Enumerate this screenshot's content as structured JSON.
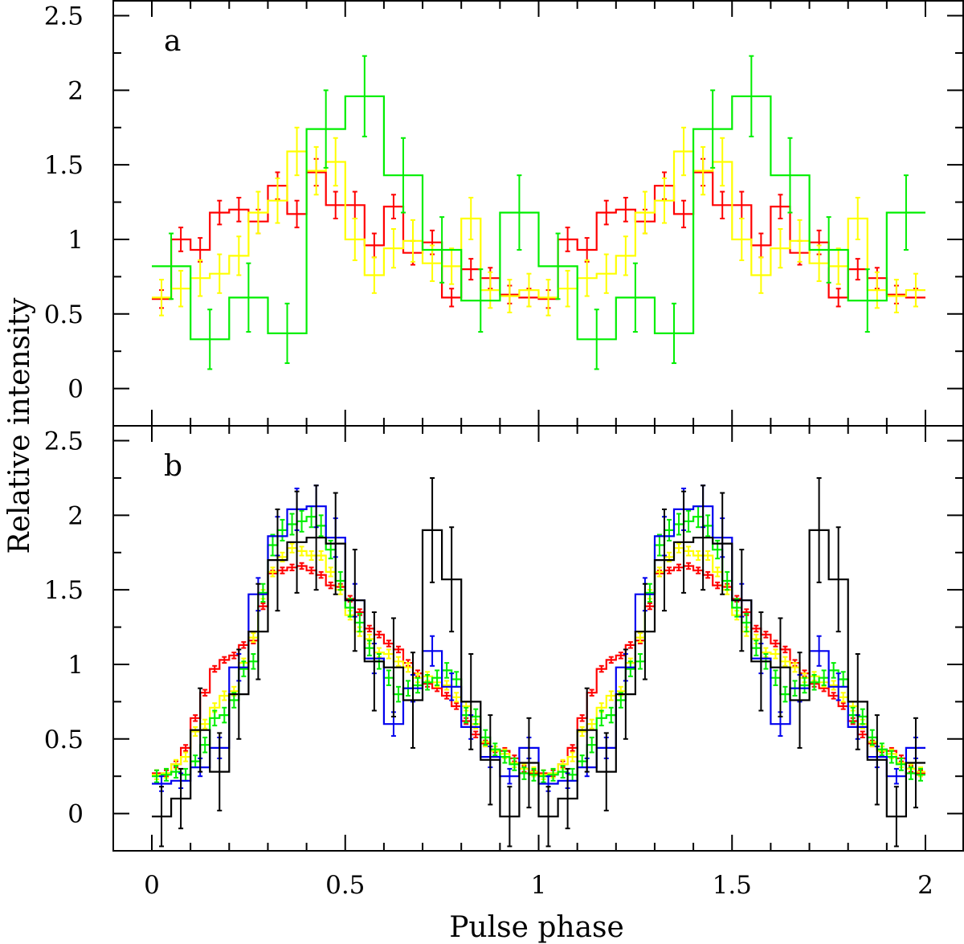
{
  "chart_data": {
    "type": "line",
    "figure": {
      "xlabel": "Pulse phase",
      "ylabel": "Relative intensity",
      "xlim": [
        -0.1,
        2.1
      ],
      "xticks": [
        0,
        0.5,
        1,
        1.5,
        2
      ],
      "xtick_labels": [
        "0",
        "0.5",
        "1",
        "1.5",
        "2"
      ]
    },
    "panels": [
      {
        "label": "a",
        "ylim": [
          -0.25,
          2.6
        ],
        "yticks": [
          0,
          0.5,
          1,
          1.5,
          2,
          2.5
        ],
        "ytick_labels": [
          "0",
          "0.5",
          "1",
          "1.5",
          "2",
          "2.5"
        ],
        "series": [
          {
            "name": "red",
            "color": "#ff0000",
            "bins": 20,
            "values": [
              0.6,
              1.0,
              0.93,
              1.18,
              1.2,
              1.12,
              1.36,
              1.17,
              1.45,
              1.23,
              1.23,
              0.96,
              1.22,
              0.91,
              0.98,
              0.61,
              0.8,
              0.74,
              0.63,
              0.61
            ],
            "errors": [
              0.06,
              0.08,
              0.08,
              0.08,
              0.08,
              0.08,
              0.09,
              0.09,
              0.09,
              0.09,
              0.09,
              0.08,
              0.08,
              0.08,
              0.08,
              0.06,
              0.07,
              0.07,
              0.06,
              0.06
            ]
          },
          {
            "name": "yellow",
            "color": "#ffff00",
            "bins": 20,
            "values": [
              0.61,
              0.67,
              0.74,
              0.77,
              0.89,
              1.18,
              1.26,
              1.59,
              1.46,
              1.52,
              1.0,
              0.76,
              0.94,
              0.99,
              0.84,
              0.82,
              1.14,
              0.66,
              0.62,
              0.66
            ],
            "errors": [
              0.12,
              0.12,
              0.12,
              0.13,
              0.13,
              0.14,
              0.15,
              0.16,
              0.16,
              0.16,
              0.14,
              0.12,
              0.13,
              0.14,
              0.12,
              0.12,
              0.14,
              0.12,
              0.11,
              0.11
            ]
          },
          {
            "name": "green",
            "color": "#00ee00",
            "bins": 10,
            "values": [
              0.82,
              0.33,
              0.61,
              0.37,
              1.74,
              1.96,
              1.43,
              0.93,
              0.59,
              1.18
            ],
            "errors": [
              0.22,
              0.2,
              0.23,
              0.2,
              0.26,
              0.27,
              0.25,
              0.22,
              0.21,
              0.25
            ]
          }
        ]
      },
      {
        "label": "b",
        "ylim": [
          -0.25,
          2.6
        ],
        "yticks": [
          0,
          0.5,
          1,
          1.5,
          2,
          2.5
        ],
        "ytick_labels": [
          "0",
          "0.5",
          "1",
          "1.5",
          "2",
          "2.5"
        ],
        "series": [
          {
            "name": "red",
            "color": "#ff0000",
            "bins": 40,
            "values": [
              0.27,
              0.27,
              0.33,
              0.44,
              0.64,
              0.81,
              0.97,
              1.03,
              1.06,
              1.13,
              1.16,
              1.39,
              1.61,
              1.63,
              1.65,
              1.66,
              1.63,
              1.6,
              1.53,
              1.52,
              1.44,
              1.35,
              1.24,
              1.2,
              1.14,
              1.1,
              1.01,
              0.94,
              0.87,
              0.84,
              0.79,
              0.72,
              0.62,
              0.53,
              0.47,
              0.43,
              0.42,
              0.37,
              0.3,
              0.27
            ],
            "errors": [
              0.02,
              0.02,
              0.02,
              0.02,
              0.02,
              0.02,
              0.02,
              0.02,
              0.02,
              0.02,
              0.02,
              0.02,
              0.02,
              0.02,
              0.02,
              0.02,
              0.02,
              0.02,
              0.02,
              0.02,
              0.02,
              0.02,
              0.02,
              0.02,
              0.02,
              0.02,
              0.02,
              0.02,
              0.02,
              0.02,
              0.02,
              0.02,
              0.02,
              0.02,
              0.02,
              0.02,
              0.02,
              0.02,
              0.02,
              0.02
            ]
          },
          {
            "name": "yellow",
            "color": "#ffff00",
            "bins": 40,
            "values": [
              0.26,
              0.27,
              0.33,
              0.38,
              0.55,
              0.6,
              0.71,
              0.79,
              0.82,
              1.01,
              1.18,
              1.47,
              1.62,
              1.72,
              1.78,
              1.76,
              1.73,
              1.73,
              1.62,
              1.5,
              1.33,
              1.22,
              1.17,
              1.08,
              1.07,
              1.02,
              0.98,
              0.91,
              0.92,
              0.88,
              0.86,
              0.78,
              0.72,
              0.6,
              0.48,
              0.42,
              0.4,
              0.34,
              0.3,
              0.28
            ],
            "errors": [
              0.03,
              0.03,
              0.03,
              0.03,
              0.03,
              0.03,
              0.03,
              0.03,
              0.03,
              0.03,
              0.03,
              0.03,
              0.03,
              0.03,
              0.03,
              0.03,
              0.03,
              0.03,
              0.03,
              0.03,
              0.03,
              0.03,
              0.03,
              0.03,
              0.03,
              0.03,
              0.03,
              0.03,
              0.03,
              0.03,
              0.03,
              0.03,
              0.03,
              0.03,
              0.03,
              0.03,
              0.03,
              0.03,
              0.03,
              0.03
            ]
          },
          {
            "name": "green",
            "color": "#00ee00",
            "bins": 40,
            "values": [
              0.25,
              0.26,
              0.28,
              0.26,
              0.35,
              0.46,
              0.64,
              0.66,
              0.76,
              0.97,
              1.02,
              1.48,
              1.8,
              1.9,
              1.94,
              1.96,
              1.99,
              1.93,
              1.77,
              1.56,
              1.38,
              1.28,
              1.11,
              1.02,
              0.91,
              0.8,
              0.84,
              0.86,
              0.88,
              0.91,
              0.96,
              0.9,
              0.66,
              0.65,
              0.51,
              0.43,
              0.38,
              0.33,
              0.27,
              0.26
            ],
            "errors": [
              0.04,
              0.04,
              0.04,
              0.04,
              0.04,
              0.05,
              0.05,
              0.05,
              0.05,
              0.05,
              0.05,
              0.06,
              0.07,
              0.07,
              0.07,
              0.07,
              0.07,
              0.07,
              0.06,
              0.06,
              0.06,
              0.06,
              0.05,
              0.05,
              0.05,
              0.05,
              0.05,
              0.05,
              0.05,
              0.05,
              0.05,
              0.05,
              0.05,
              0.05,
              0.05,
              0.04,
              0.04,
              0.04,
              0.04,
              0.04
            ]
          },
          {
            "name": "blue",
            "color": "#0000ee",
            "bins": 20,
            "values": [
              0.2,
              0.22,
              0.31,
              0.44,
              0.98,
              1.47,
              1.86,
              2.04,
              2.06,
              1.85,
              1.43,
              1.04,
              0.6,
              0.84,
              1.09,
              0.85,
              0.58,
              0.38,
              0.25,
              0.44
            ],
            "errors": [
              0.05,
              0.05,
              0.06,
              0.07,
              0.09,
              0.11,
              0.13,
              0.14,
              0.14,
              0.13,
              0.11,
              0.1,
              0.08,
              0.09,
              0.1,
              0.09,
              0.08,
              0.07,
              0.05,
              0.07
            ]
          },
          {
            "name": "black",
            "color": "#000000",
            "bins": 20,
            "values": [
              -0.02,
              0.1,
              0.56,
              0.28,
              0.8,
              1.22,
              1.7,
              1.82,
              1.85,
              1.81,
              1.43,
              1.02,
              0.98,
              0.76,
              1.9,
              1.57,
              0.75,
              0.36,
              -0.02,
              0.34
            ],
            "errors": [
              0.2,
              0.2,
              0.28,
              0.26,
              0.3,
              0.32,
              0.34,
              0.34,
              0.35,
              0.34,
              0.34,
              0.33,
              0.33,
              0.32,
              0.35,
              0.35,
              0.32,
              0.3,
              0.2,
              0.3
            ]
          }
        ]
      }
    ]
  }
}
